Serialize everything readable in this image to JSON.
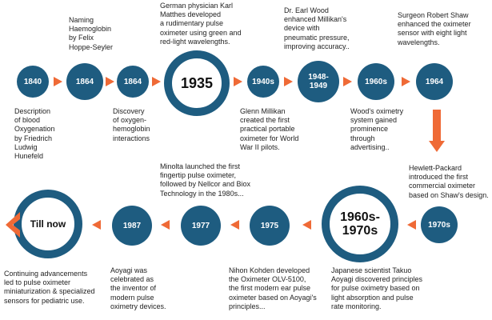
{
  "milestones": [
    {
      "year": "1840",
      "text": "Description\nof blood\nOxygenation\nby Friedrich\nLudwig\nHunefeld"
    },
    {
      "year": "1864",
      "text": "Naming\nHaemoglobin\nby Felix\nHoppe-Seyler"
    },
    {
      "year": "1864",
      "text": "Discovery\nof oxygen-\nhemoglobin\ninteractions"
    },
    {
      "year": "1935",
      "text": "German physician Karl\nMatthes developed\na rudimentary pulse\noximeter using green and\nred-light wavelengths."
    },
    {
      "year": "1940s",
      "text": "Glenn Millikan\ncreated the first\npractical portable\noximeter for World\nWar II pilots."
    },
    {
      "year": "1948-\n1949",
      "text": "Dr. Earl Wood\nenhanced Millikan's\ndevice with\npneumatic pressure,\nimproving accuracy.."
    },
    {
      "year": "1960s",
      "text": "Wood's oximetry\nsystem gained\nprominence\nthrough\nadvertising.."
    },
    {
      "year": "1964",
      "text": "Surgeon Robert Shaw\nenhanced the oximeter\nsensor with eight light\nwavelengths."
    },
    {
      "year": "1970s",
      "text": "Hewlett-Packard\nintroduced the first\ncommercial oximeter\nbased on Shaw's design."
    },
    {
      "year": "1960s-\n1970s",
      "text": "Japanese scientist Takuo\nAoyagi discovered principles\nfor pulse oximetry based on\nlight absorption and pulse\nrate monitoring."
    },
    {
      "year": "1975",
      "text": "Nihon Kohden developed\nthe Oximeter OLV-5100,\nthe first modern ear pulse\noximeter based on Aoyagi's\nprinciples..."
    },
    {
      "year": "1977",
      "text": "Minolta launched the first\nfingertip pulse oximeter,\nfollowed by Nellcor and Biox\nTechnology in the 1980s..."
    },
    {
      "year": "1987",
      "text": "Aoyagi was\ncelebrated as\nthe inventor of\nmodern pulse\noximetry devices."
    },
    {
      "year": "Till now",
      "text": "Continuing advancements\nled to pulse oximeter\nminiaturization & specialized\nsensors for pediatric use."
    }
  ],
  "colors": {
    "node": "#1e5c80",
    "arrow": "#ef6a36",
    "text": "#222222"
  }
}
